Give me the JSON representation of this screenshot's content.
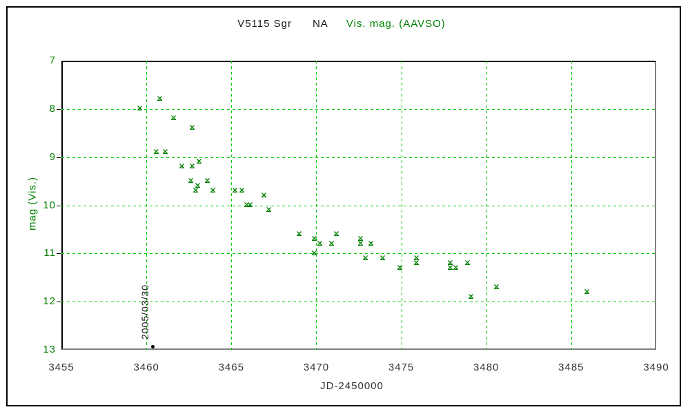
{
  "title": {
    "object": "V5115 Sgr",
    "type_code": "NA",
    "series": "Vis. mag. (AAVSO)"
  },
  "axes": {
    "x_label": "JD-2450000",
    "y_label": "mag (Vis.)"
  },
  "annotation": {
    "text": "2005/03/30"
  },
  "colors": {
    "grid_green": "#00cc00",
    "marker_green": "#008000",
    "label_green": "#008000",
    "axis_black": "#000000",
    "axis_gray": "#808080",
    "tick_text": "#333333",
    "discovery_dot": "#000000"
  },
  "chart_data": {
    "type": "scatter",
    "title": "V5115 Sgr  NA  Vis. mag. (AAVSO)",
    "xlabel": "JD-2450000",
    "ylabel": "mag (Vis.)",
    "xlim": [
      3455,
      3490
    ],
    "ylim": [
      7,
      13
    ],
    "y_inverted": true,
    "x_ticks": [
      3455,
      3460,
      3465,
      3470,
      3475,
      3480,
      3485,
      3490
    ],
    "y_ticks": [
      7,
      8,
      9,
      10,
      11,
      12,
      13
    ],
    "grid": true,
    "legend_position": "in-title",
    "series": [
      {
        "name": "Vis. mag. (AAVSO)",
        "marker": "green-cross",
        "points": [
          [
            3459.6,
            7.9
          ],
          [
            3460.8,
            7.7
          ],
          [
            3461.6,
            8.1
          ],
          [
            3462.7,
            8.3
          ],
          [
            3460.6,
            8.8
          ],
          [
            3461.1,
            8.8
          ],
          [
            3463.1,
            9.0
          ],
          [
            3462.1,
            9.1
          ],
          [
            3462.7,
            9.1
          ],
          [
            3462.6,
            9.4
          ],
          [
            3463.6,
            9.4
          ],
          [
            3463.0,
            9.5
          ],
          [
            3462.9,
            9.6
          ],
          [
            3463.9,
            9.6
          ],
          [
            3465.2,
            9.6
          ],
          [
            3465.6,
            9.6
          ],
          [
            3465.9,
            9.9
          ],
          [
            3466.1,
            9.9
          ],
          [
            3466.9,
            9.7
          ],
          [
            3467.2,
            10.0
          ],
          [
            3469.0,
            10.5
          ],
          [
            3469.9,
            10.6
          ],
          [
            3469.9,
            10.9
          ],
          [
            3470.2,
            10.7
          ],
          [
            3470.9,
            10.7
          ],
          [
            3471.2,
            10.5
          ],
          [
            3472.6,
            10.6
          ],
          [
            3472.6,
            10.7
          ],
          [
            3473.2,
            10.7
          ],
          [
            3472.9,
            11.0
          ],
          [
            3473.9,
            11.0
          ],
          [
            3474.9,
            11.2
          ],
          [
            3475.9,
            11.0
          ],
          [
            3475.9,
            11.1
          ],
          [
            3477.9,
            11.1
          ],
          [
            3477.9,
            11.2
          ],
          [
            3478.2,
            11.2
          ],
          [
            3478.9,
            11.1
          ],
          [
            3479.1,
            11.8
          ],
          [
            3480.6,
            11.6
          ],
          [
            3485.9,
            11.7
          ]
        ]
      },
      {
        "name": "discovery-date",
        "marker": "black-dot",
        "points": [
          [
            3460.4,
            12.93
          ]
        ],
        "annotation": "2005/03/30"
      }
    ]
  }
}
